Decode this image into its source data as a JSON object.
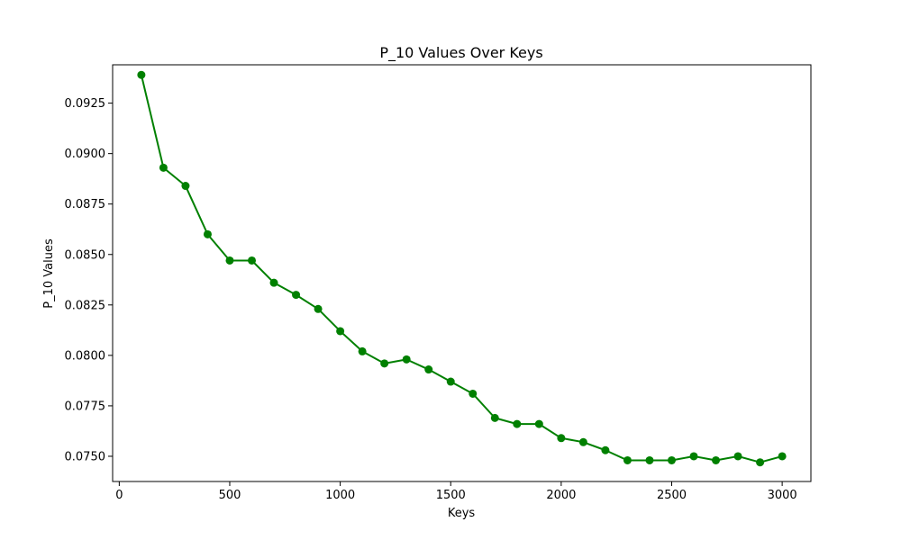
{
  "chart_data": {
    "type": "line",
    "title": "P_10 Values Over Keys",
    "xlabel": "Keys",
    "ylabel": "P_10 Values",
    "xlim": [
      -30,
      3130
    ],
    "ylim": [
      0.07375,
      0.0944
    ],
    "xticks": [
      0,
      500,
      1000,
      1500,
      2000,
      2500,
      3000
    ],
    "xtick_labels": [
      "0",
      "500",
      "1000",
      "1500",
      "2000",
      "2500",
      "3000"
    ],
    "yticks": [
      0.075,
      0.0775,
      0.08,
      0.0825,
      0.085,
      0.0875,
      0.09,
      0.0925
    ],
    "ytick_labels": [
      "0.0750",
      "0.0775",
      "0.0800",
      "0.0825",
      "0.0850",
      "0.0875",
      "0.0900",
      "0.0925"
    ],
    "grid": false,
    "color": "#008000",
    "marker": "circle",
    "series": [
      {
        "name": "P_10",
        "x": [
          100,
          200,
          300,
          400,
          500,
          600,
          700,
          800,
          900,
          1000,
          1100,
          1200,
          1300,
          1400,
          1500,
          1600,
          1700,
          1800,
          1900,
          2000,
          2100,
          2200,
          2300,
          2400,
          2500,
          2600,
          2700,
          2800,
          2900,
          3000
        ],
        "values": [
          0.0939,
          0.0893,
          0.0884,
          0.086,
          0.0847,
          0.0847,
          0.0836,
          0.083,
          0.0823,
          0.0812,
          0.0802,
          0.0796,
          0.0798,
          0.0793,
          0.0787,
          0.0781,
          0.0769,
          0.0766,
          0.0766,
          0.0759,
          0.0757,
          0.0753,
          0.0748,
          0.0748,
          0.0748,
          0.075,
          0.0748,
          0.075,
          0.0747,
          0.075
        ]
      }
    ]
  }
}
